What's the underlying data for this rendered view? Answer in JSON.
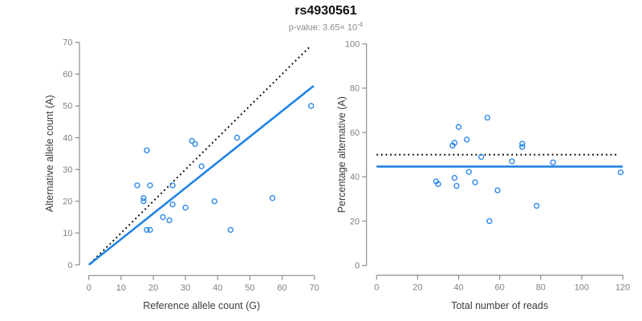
{
  "header": {
    "title": "rs4930561",
    "subtitle_prefix": "p-value: 3.65× 10",
    "subtitle_exponent": "-4"
  },
  "colors": {
    "accent_blue": "#2082E6",
    "dotted_black": "#000000",
    "axis_gray": "#8c8c8c",
    "tick_label_gray": "#808080",
    "axis_title_dark": "#3c3c3c"
  },
  "chart_data": [
    {
      "type": "scatter",
      "xlabel": "Reference allele count (G)",
      "ylabel": "Alternative allele count (A)",
      "xlim": [
        0,
        70
      ],
      "ylim": [
        0,
        70
      ],
      "xticks": [
        0,
        10,
        20,
        30,
        40,
        50,
        60,
        70
      ],
      "yticks": [
        0,
        10,
        20,
        30,
        40,
        50,
        60,
        70
      ],
      "grid": false,
      "legend": null,
      "points": [
        [
          18,
          36
        ],
        [
          15,
          25
        ],
        [
          19,
          25
        ],
        [
          17,
          21
        ],
        [
          17,
          20
        ],
        [
          32,
          39
        ],
        [
          33,
          38
        ],
        [
          35,
          31
        ],
        [
          26,
          25
        ],
        [
          26,
          19
        ],
        [
          30,
          18
        ],
        [
          23,
          15
        ],
        [
          25,
          14
        ],
        [
          18,
          11
        ],
        [
          19,
          11
        ],
        [
          39,
          20
        ],
        [
          46,
          40
        ],
        [
          44,
          11
        ],
        [
          57,
          21
        ],
        [
          69,
          50
        ]
      ],
      "lines": [
        {
          "name": "identity-line",
          "style": "dotted",
          "color": "#000000",
          "x1": 0.5,
          "y1": 0.5,
          "x2": 68.8,
          "y2": 68.8
        },
        {
          "name": "fit-line",
          "style": "solid",
          "color": "#2082E6",
          "x1": 0,
          "y1": 0,
          "x2": 69.8,
          "y2": 56.3
        }
      ]
    },
    {
      "type": "scatter",
      "xlabel": "Total number of reads",
      "ylabel": "Percentage alternative (A)",
      "xlim": [
        0,
        120
      ],
      "ylim": [
        0,
        100
      ],
      "xticks": [
        0,
        20,
        40,
        60,
        80,
        100,
        120
      ],
      "yticks": [
        0,
        20,
        40,
        60,
        80,
        100
      ],
      "grid": false,
      "legend": null,
      "points": [
        [
          54,
          66.7
        ],
        [
          40,
          62.5
        ],
        [
          44,
          56.8
        ],
        [
          38,
          55.3
        ],
        [
          37,
          54.1
        ],
        [
          71,
          54.9
        ],
        [
          71,
          53.5
        ],
        [
          66,
          47.0
        ],
        [
          51,
          49.0
        ],
        [
          45,
          42.2
        ],
        [
          48,
          37.5
        ],
        [
          38,
          39.5
        ],
        [
          39,
          35.9
        ],
        [
          29,
          37.9
        ],
        [
          30,
          36.7
        ],
        [
          59,
          33.9
        ],
        [
          86,
          46.5
        ],
        [
          55,
          20.0
        ],
        [
          78,
          26.9
        ],
        [
          119,
          42.0
        ]
      ],
      "lines": [
        {
          "name": "expected-50pct-line",
          "style": "dotted",
          "color": "#000000",
          "x1": 0,
          "y1": 50,
          "x2": 117.5,
          "y2": 50
        },
        {
          "name": "mean-percentage-line",
          "style": "solid",
          "color": "#2082E6",
          "x1": 0,
          "y1": 44.6,
          "x2": 120,
          "y2": 44.6
        }
      ]
    }
  ]
}
